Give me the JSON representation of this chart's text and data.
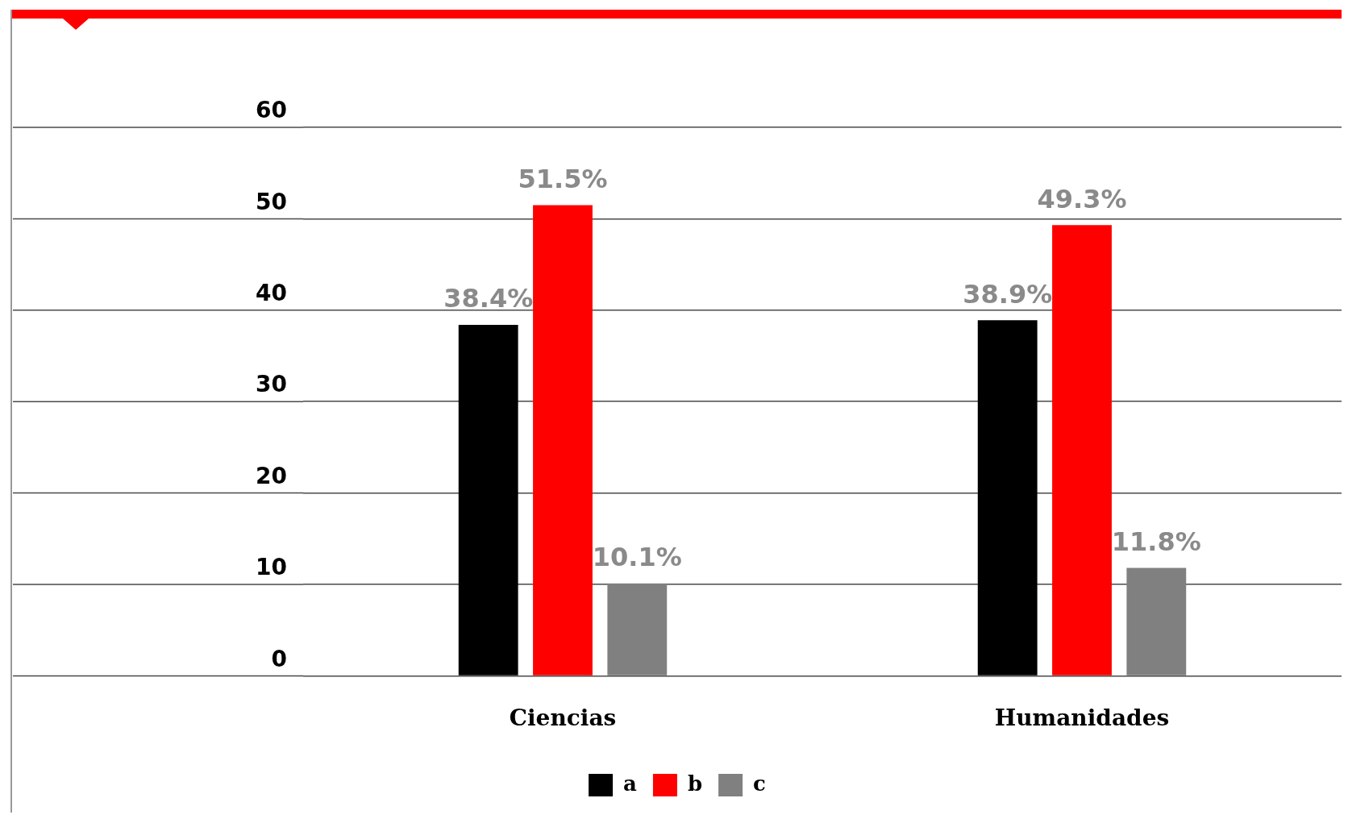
{
  "chart_data": {
    "type": "bar",
    "categories": [
      "Ciencias",
      "Humanidades"
    ],
    "series": [
      {
        "name": "a",
        "color": "#000000",
        "values": [
          38.4,
          38.9
        ],
        "value_labels": [
          "38.4%",
          "38.9%"
        ]
      },
      {
        "name": "b",
        "color": "#ff0000",
        "values": [
          51.5,
          49.3
        ],
        "value_labels": [
          "51.5%",
          "49.3%"
        ]
      },
      {
        "name": "c",
        "color": "#808080",
        "values": [
          10.1,
          11.8
        ],
        "value_labels": [
          "10.1%",
          "11.8%"
        ]
      }
    ],
    "ylim": [
      0,
      60
    ],
    "yticks": [
      0,
      10,
      20,
      30,
      40,
      50,
      60
    ],
    "grid": "y",
    "legend": "bottom"
  }
}
